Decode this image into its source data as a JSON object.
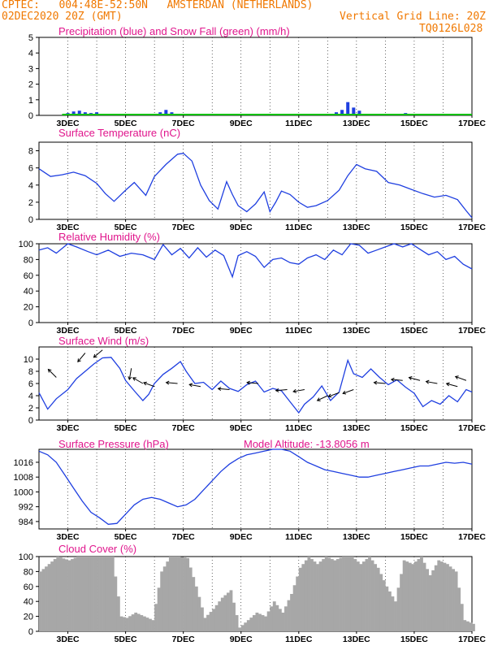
{
  "header": {
    "line1": "CPTEC:   004:48E-52:50N   AMSTERDAN (NETHERLANDS)",
    "line2_left": "02DEC2020 20Z (GMT)",
    "line2_right": "Vertical Grid Line: 20Z",
    "code": "TQ0126L028",
    "color": "#f07800"
  },
  "colors": {
    "title": "#e0158c",
    "line": "#1f3fe0",
    "snow": "#10c010",
    "cloud": "#a7a7a7",
    "arrow": "#000000"
  },
  "x_ticks": [
    "3DEC",
    "5DEC",
    "7DEC",
    "9DEC",
    "11DEC",
    "13DEC",
    "15DEC",
    "17DEC"
  ],
  "chart_data": [
    {
      "type": "bar",
      "title": "Precipitation (blue) and Snow Fall (green) (mm/h)",
      "ylim": [
        0,
        5
      ],
      "yticks": [
        0,
        1,
        2,
        3,
        4,
        5
      ],
      "series": [
        {
          "values_x_day": [
            3.0,
            3.2,
            3.4,
            3.6,
            3.8,
            4.0,
            4.2,
            4.4,
            6.2,
            6.4,
            6.6,
            12.3,
            12.5,
            12.7,
            12.9,
            13.1,
            14.7,
            14.9
          ],
          "values": [
            0.15,
            0.25,
            0.3,
            0.2,
            0.15,
            0.2,
            0.1,
            0.05,
            0.2,
            0.35,
            0.2,
            0.2,
            0.35,
            0.85,
            0.5,
            0.3,
            0.15,
            0.1
          ]
        },
        {
          "values_x_day": [
            2.8,
            17.0
          ],
          "values": [
            0.05,
            0.05
          ]
        }
      ],
      "grid": "vertical"
    },
    {
      "type": "line",
      "title": "Surface Temperature (nC)",
      "ylim": [
        0,
        9
      ],
      "yticks": [
        0,
        2,
        4,
        6,
        8
      ],
      "x": [
        2.0,
        2.4,
        2.8,
        3.2,
        3.6,
        4.0,
        4.3,
        4.6,
        5.0,
        5.3,
        5.7,
        6.0,
        6.4,
        6.8,
        7.0,
        7.3,
        7.6,
        7.9,
        8.2,
        8.5,
        8.7,
        8.9,
        9.2,
        9.5,
        9.8,
        10.0,
        10.2,
        10.4,
        10.7,
        11.0,
        11.3,
        11.6,
        12.0,
        12.4,
        12.7,
        13.0,
        13.3,
        13.7,
        14.1,
        14.5,
        14.9,
        15.3,
        15.7,
        16.1,
        16.5,
        16.8,
        17.0
      ],
      "values": [
        5.9,
        5.0,
        5.2,
        5.5,
        5.1,
        4.2,
        3.0,
        2.1,
        3.4,
        4.3,
        2.8,
        5.0,
        6.4,
        7.6,
        7.7,
        6.8,
        4.0,
        2.2,
        1.2,
        4.4,
        2.9,
        1.6,
        0.9,
        1.8,
        3.2,
        0.9,
        2.0,
        3.3,
        2.9,
        2.0,
        1.4,
        1.6,
        2.2,
        3.4,
        5.1,
        6.4,
        5.9,
        5.6,
        4.3,
        4.0,
        3.5,
        3.0,
        2.6,
        2.8,
        2.3,
        1.0,
        0.2
      ],
      "grid": "vertical"
    },
    {
      "type": "line",
      "title": "Relative Humidity (%)",
      "ylim": [
        0,
        100
      ],
      "yticks": [
        0,
        20,
        40,
        60,
        80,
        100
      ],
      "x": [
        2.0,
        2.3,
        2.6,
        3.0,
        3.3,
        3.7,
        4.0,
        4.4,
        4.8,
        5.2,
        5.6,
        6.0,
        6.3,
        6.6,
        6.9,
        7.2,
        7.5,
        7.8,
        8.1,
        8.4,
        8.7,
        8.9,
        9.2,
        9.5,
        9.8,
        10.1,
        10.4,
        10.7,
        11.0,
        11.3,
        11.6,
        11.9,
        12.2,
        12.5,
        12.8,
        13.1,
        13.4,
        13.7,
        14.0,
        14.3,
        14.6,
        14.9,
        15.2,
        15.5,
        15.8,
        16.1,
        16.4,
        16.7,
        17.0
      ],
      "values": [
        92,
        95,
        88,
        100,
        96,
        90,
        86,
        92,
        84,
        88,
        86,
        80,
        99,
        86,
        94,
        82,
        95,
        83,
        92,
        85,
        58,
        85,
        90,
        84,
        70,
        80,
        82,
        76,
        74,
        82,
        86,
        80,
        92,
        86,
        100,
        98,
        88,
        92,
        96,
        100,
        96,
        100,
        93,
        86,
        90,
        80,
        84,
        74,
        68
      ],
      "grid": "vertical"
    },
    {
      "type": "line",
      "title": "Surface Wind (m/s)",
      "ylim": [
        0,
        12
      ],
      "yticks": [
        0,
        2,
        4,
        6,
        8,
        10
      ],
      "x": [
        2.0,
        2.3,
        2.6,
        3.0,
        3.3,
        3.6,
        3.9,
        4.2,
        4.5,
        4.8,
        5.0,
        5.3,
        5.6,
        5.8,
        6.0,
        6.3,
        6.6,
        6.9,
        7.1,
        7.4,
        7.7,
        8.0,
        8.3,
        8.6,
        8.9,
        9.2,
        9.5,
        9.8,
        10.1,
        10.4,
        10.7,
        11.0,
        11.2,
        11.5,
        11.8,
        12.1,
        12.4,
        12.7,
        12.9,
        13.2,
        13.5,
        13.8,
        14.1,
        14.4,
        14.7,
        15.0,
        15.3,
        15.6,
        15.9,
        16.2,
        16.5,
        16.8,
        17.0
      ],
      "values": [
        4.5,
        1.8,
        3.5,
        5.0,
        6.8,
        8.0,
        9.2,
        10.2,
        10.3,
        8.5,
        6.5,
        4.8,
        3.2,
        4.2,
        6.0,
        7.5,
        8.5,
        9.6,
        8.0,
        6.0,
        6.2,
        5.0,
        6.4,
        5.2,
        4.7,
        5.8,
        6.4,
        4.6,
        5.2,
        4.8,
        3.0,
        1.2,
        2.6,
        3.8,
        5.6,
        3.2,
        4.6,
        9.8,
        7.6,
        7.0,
        8.4,
        7.0,
        5.8,
        6.6,
        5.4,
        4.4,
        2.2,
        3.2,
        2.6,
        4.0,
        3.0,
        5.0,
        4.6
      ],
      "arrows": [
        [
          2.6,
          7.0,
          135
        ],
        [
          3.6,
          11.0,
          230
        ],
        [
          4.2,
          11.5,
          220
        ],
        [
          5.2,
          8.5,
          260
        ],
        [
          5.6,
          6.0,
          150
        ],
        [
          6.0,
          5.5,
          160
        ],
        [
          6.8,
          6.0,
          175
        ],
        [
          7.6,
          5.5,
          170
        ],
        [
          8.6,
          5.0,
          175
        ],
        [
          9.6,
          6.0,
          175
        ],
        [
          10.6,
          5.0,
          185
        ],
        [
          11.2,
          5.0,
          190
        ],
        [
          12.0,
          4.0,
          205
        ],
        [
          12.4,
          4.5,
          200
        ],
        [
          12.9,
          5.0,
          200
        ],
        [
          14.0,
          6.0,
          175
        ],
        [
          14.6,
          6.5,
          175
        ],
        [
          15.2,
          6.5,
          165
        ],
        [
          15.8,
          6.0,
          170
        ],
        [
          16.5,
          5.5,
          165
        ],
        [
          16.8,
          6.5,
          160
        ]
      ],
      "grid": "vertical"
    },
    {
      "type": "line",
      "title": "Surface Pressure (hPa)",
      "annotation": "Model Altitude: -13.8056 m",
      "ylim": [
        980,
        1023
      ],
      "yticks": [
        984,
        992,
        1000,
        1008,
        1016
      ],
      "x": [
        2.0,
        2.3,
        2.6,
        2.9,
        3.2,
        3.5,
        3.8,
        4.1,
        4.4,
        4.7,
        5.0,
        5.3,
        5.6,
        5.9,
        6.2,
        6.5,
        6.8,
        7.1,
        7.4,
        7.7,
        8.0,
        8.3,
        8.6,
        8.9,
        9.2,
        9.5,
        9.8,
        10.1,
        10.4,
        10.7,
        11.0,
        11.3,
        11.6,
        11.9,
        12.2,
        12.5,
        12.8,
        13.1,
        13.4,
        13.7,
        14.0,
        14.3,
        14.6,
        14.9,
        15.2,
        15.5,
        15.8,
        16.1,
        16.4,
        16.7,
        17.0
      ],
      "values": [
        1022,
        1020,
        1016,
        1009,
        1002,
        995,
        989,
        986,
        982.5,
        983,
        988,
        993,
        996,
        997,
        996,
        994,
        992,
        993,
        996,
        1001,
        1006,
        1011,
        1015,
        1018,
        1020,
        1021,
        1022,
        1023,
        1023,
        1022,
        1019,
        1016,
        1014,
        1012,
        1011,
        1010,
        1009,
        1008,
        1008,
        1009,
        1010,
        1011,
        1012,
        1013,
        1014,
        1014,
        1015,
        1016,
        1015.5,
        1016,
        1015
      ],
      "grid": "vertical"
    },
    {
      "type": "bar",
      "title": "Cloud Cover (%)",
      "ylim": [
        0,
        100
      ],
      "yticks": [
        0,
        20,
        40,
        60,
        80,
        100
      ],
      "x": [
        2.0,
        2.3,
        2.6,
        3.0,
        3.3,
        3.6,
        3.9,
        4.2,
        4.5,
        4.8,
        5.0,
        5.3,
        5.6,
        5.9,
        6.2,
        6.5,
        6.8,
        7.1,
        7.4,
        7.7,
        8.0,
        8.3,
        8.6,
        8.9,
        9.2,
        9.5,
        9.8,
        10.1,
        10.4,
        10.7,
        11.0,
        11.3,
        11.6,
        11.9,
        12.2,
        12.5,
        12.8,
        13.1,
        13.4,
        13.7,
        14.0,
        14.3,
        14.6,
        14.9,
        15.2,
        15.5,
        15.8,
        16.1,
        16.4,
        16.7,
        17.0
      ],
      "values": [
        80,
        90,
        100,
        95,
        100,
        100,
        100,
        100,
        100,
        20,
        18,
        25,
        20,
        15,
        80,
        100,
        100,
        98,
        60,
        18,
        30,
        45,
        55,
        5,
        15,
        25,
        20,
        40,
        25,
        50,
        85,
        100,
        90,
        100,
        95,
        100,
        100,
        90,
        100,
        85,
        60,
        40,
        95,
        90,
        100,
        75,
        95,
        90,
        80,
        15,
        10
      ],
      "grid": "vertical"
    }
  ]
}
